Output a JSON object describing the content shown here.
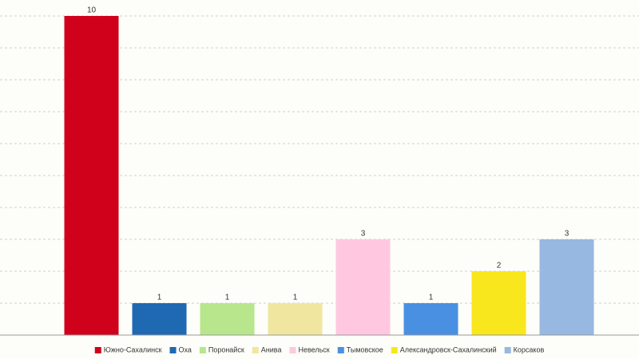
{
  "chart_data": {
    "type": "bar",
    "series": [
      {
        "name": "Южно-Сахалинск",
        "color": "#d0021b",
        "values": [
          10
        ]
      },
      {
        "name": "Оха",
        "color": "#1f69b3",
        "values": [
          1
        ]
      },
      {
        "name": "Поронайск",
        "color": "#b8e68c",
        "values": [
          1
        ]
      },
      {
        "name": "Анива",
        "color": "#f0e6a0",
        "values": [
          1
        ]
      },
      {
        "name": "Невельск",
        "color": "#ffc8e0",
        "values": [
          3
        ]
      },
      {
        "name": "Тымовское",
        "color": "#4a90e2",
        "values": [
          1
        ]
      },
      {
        "name": "Александровск-Сахалинский",
        "color": "#f8e71c",
        "values": [
          2
        ]
      },
      {
        "name": "Корсаков",
        "color": "#97b8e0",
        "values": [
          3
        ]
      }
    ],
    "ylim": [
      0,
      10
    ],
    "yticks": [
      0,
      1,
      2,
      3,
      4,
      5,
      6,
      7,
      8,
      9,
      10
    ],
    "grid": true,
    "legend": "bottom"
  }
}
